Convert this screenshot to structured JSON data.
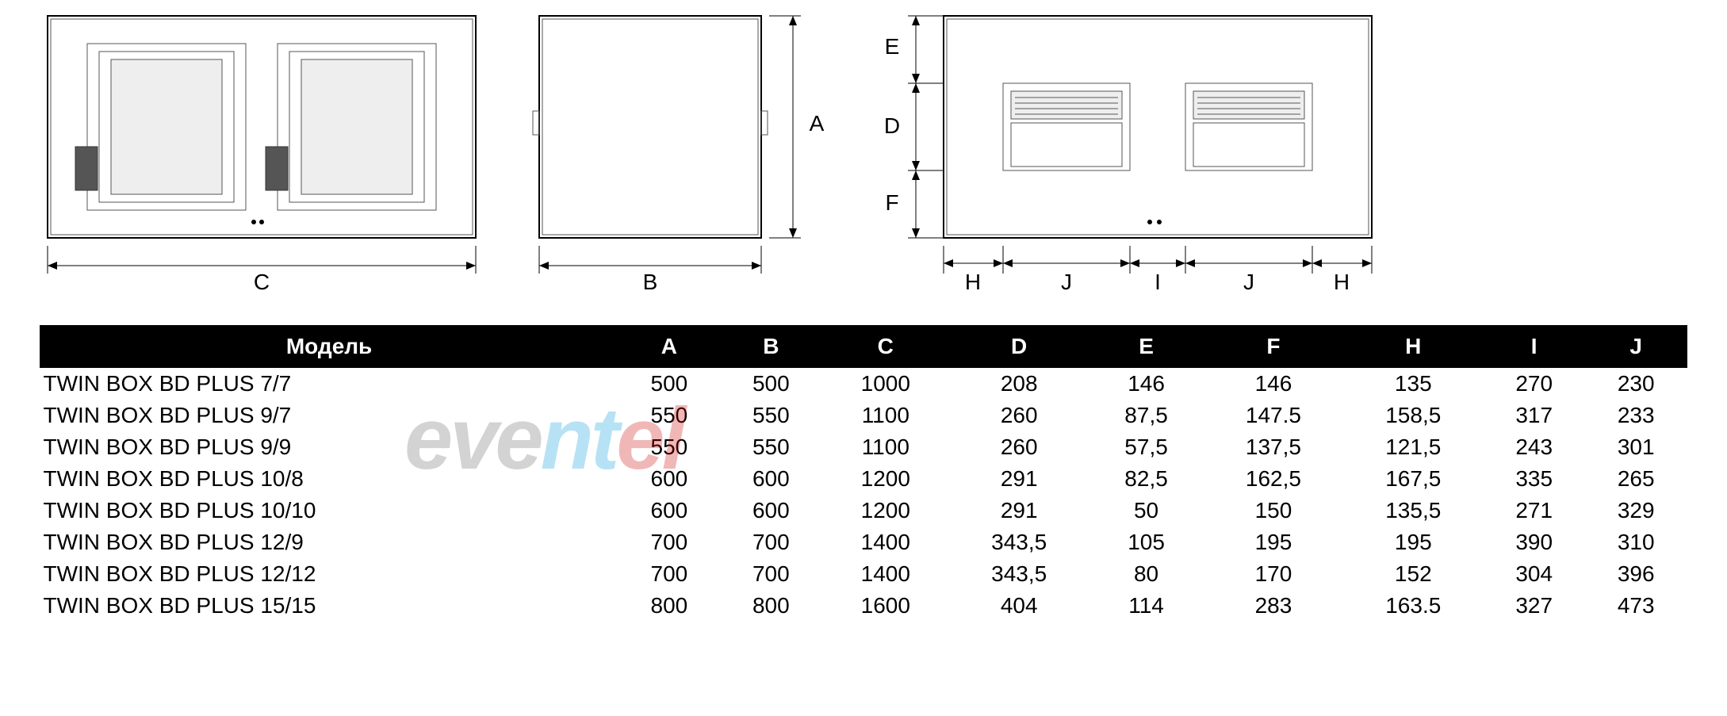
{
  "diagram": {
    "dimension_labels": {
      "A": "A",
      "B": "B",
      "C": "C",
      "D": "D",
      "E": "E",
      "F": "F",
      "H": "H",
      "I": "I",
      "J": "J"
    },
    "stroke_color": "#000000",
    "fill_color": "#ffffff",
    "inner_fill": "#eeeeee",
    "dark_fill": "#555555",
    "label_fontsize": 28
  },
  "table": {
    "header_bg": "#000000",
    "header_fg": "#ffffff",
    "cell_bg": "#ffffff",
    "cell_fg": "#000000",
    "font_size": 28,
    "columns": [
      "Модель",
      "A",
      "B",
      "C",
      "D",
      "E",
      "F",
      "H",
      "I",
      "J"
    ],
    "rows": [
      [
        "TWIN BOX BD PLUS 7/7",
        "500",
        "500",
        "1000",
        "208",
        "146",
        "146",
        "135",
        "270",
        "230"
      ],
      [
        "TWIN BOX BD PLUS 9/7",
        "550",
        "550",
        "1100",
        "260",
        "87,5",
        "147.5",
        "158,5",
        "317",
        "233"
      ],
      [
        "TWIN BOX BD PLUS 9/9",
        "550",
        "550",
        "1100",
        "260",
        "57,5",
        "137,5",
        "121,5",
        "243",
        "301"
      ],
      [
        "TWIN BOX BD PLUS 10/8",
        "600",
        "600",
        "1200",
        "291",
        "82,5",
        "162,5",
        "167,5",
        "335",
        "265"
      ],
      [
        "TWIN BOX BD PLUS 10/10",
        "600",
        "600",
        "1200",
        "291",
        "50",
        "150",
        "135,5",
        "271",
        "329"
      ],
      [
        "TWIN BOX BD PLUS 12/9",
        "700",
        "700",
        "1400",
        "343,5",
        "105",
        "195",
        "195",
        "390",
        "310"
      ],
      [
        "TWIN BOX BD PLUS 12/12",
        "700",
        "700",
        "1400",
        "343,5",
        "80",
        "170",
        "152",
        "304",
        "396"
      ],
      [
        "TWIN BOX BD PLUS 15/15",
        "800",
        "800",
        "1600",
        "404",
        "114",
        "283",
        "163.5",
        "327",
        "473"
      ]
    ]
  },
  "watermark": {
    "text_parts": [
      {
        "text": "e",
        "color": "#666666"
      },
      {
        "text": "v",
        "color": "#666666"
      },
      {
        "text": "e",
        "color": "#666666"
      },
      {
        "text": "n",
        "color": "#0099dd"
      },
      {
        "text": "t",
        "color": "#0099dd"
      },
      {
        "text": "e",
        "color": "#cc0000"
      },
      {
        "text": "l",
        "color": "#cc0000"
      }
    ],
    "opacity": 0.28
  }
}
